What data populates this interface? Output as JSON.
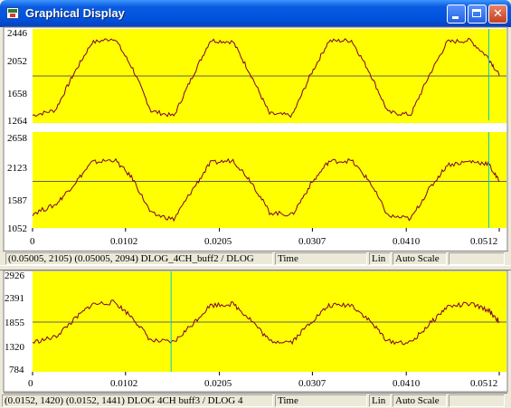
{
  "window": {
    "title": "Graphical Display",
    "minimize_glyph": "_",
    "close_glyph": "✕"
  },
  "colors": {
    "plot_background": "#ffff00",
    "trace": "#7a0030",
    "cursor": "#00c8c8",
    "grid": "#606060"
  },
  "top_panel": {
    "plot1": {
      "y_ticks": [
        "2446",
        "2052",
        "1658",
        "1264"
      ]
    },
    "plot2": {
      "y_ticks": [
        "2658",
        "2123",
        "1587",
        "1052"
      ]
    },
    "x_ticks": [
      "0",
      "0.0102",
      "0.0205",
      "0.0307",
      "0.0410",
      "0.0512"
    ],
    "status": {
      "coords": "(0.05005, 2105) (0.05005, 2094)  DLOG_4CH_buff2 / DLOG",
      "axis": "Time",
      "scale_type": "Lin",
      "scale_mode": "Auto Scale"
    }
  },
  "bottom_panel": {
    "plot1": {
      "y_ticks": [
        "2926",
        "2391",
        "1855",
        "1320",
        "784"
      ]
    },
    "x_ticks": [
      "0",
      "0.0102",
      "0.0205",
      "0.0307",
      "0.0410",
      "0.0512"
    ],
    "status": {
      "coords": "(0.0152, 1420)  (0.0152, 1441)  DLOG  4CH  buff3 / DLOG  4",
      "axis": "Time",
      "scale_type": "Lin",
      "scale_mode": "Auto Scale"
    }
  },
  "chart_data": [
    {
      "type": "line",
      "x_range": [
        0,
        0.0512
      ],
      "x_ticks": [
        "0",
        "0.0102",
        "0.0205",
        "0.0307",
        "0.0410",
        "0.0512"
      ],
      "y_range": [
        1264,
        2446
      ],
      "y_ticks": [
        2446,
        2052,
        1658,
        1264
      ],
      "cursor_x": 0.05005,
      "series": [
        {
          "x": [
            0,
            0.0025,
            0.0045,
            0.0065,
            0.009,
            0.011,
            0.013,
            0.0155,
            0.0175,
            0.0195,
            0.022,
            0.024,
            0.026,
            0.0285,
            0.0305,
            0.0325,
            0.035,
            0.037,
            0.039,
            0.0415,
            0.0435,
            0.0455,
            0.048,
            0.05,
            0.0512
          ],
          "y": [
            1330,
            1400,
            1880,
            2300,
            2360,
            1950,
            1390,
            1320,
            1840,
            2330,
            2310,
            1860,
            1350,
            1330,
            1870,
            2320,
            2330,
            1900,
            1370,
            1340,
            1860,
            2310,
            2330,
            2100,
            1860
          ]
        }
      ]
    },
    {
      "type": "line",
      "x_range": [
        0,
        0.0512
      ],
      "x_ticks": [
        "0",
        "0.0102",
        "0.0205",
        "0.0307",
        "0.0410",
        "0.0512"
      ],
      "y_range": [
        1052,
        2658
      ],
      "y_ticks": [
        2658,
        2123,
        1587,
        1052
      ],
      "cursor_x": 0.05005,
      "series": [
        {
          "x": [
            0,
            0.0025,
            0.0045,
            0.0065,
            0.009,
            0.011,
            0.013,
            0.0155,
            0.0175,
            0.0195,
            0.022,
            0.024,
            0.026,
            0.0285,
            0.0305,
            0.0325,
            0.035,
            0.037,
            0.039,
            0.0415,
            0.0435,
            0.0455,
            0.048,
            0.05,
            0.0512
          ],
          "y": [
            1300,
            1450,
            1800,
            2180,
            2230,
            1900,
            1300,
            1200,
            1700,
            2170,
            2220,
            1850,
            1320,
            1280,
            1800,
            2200,
            2210,
            1850,
            1260,
            1210,
            1720,
            2140,
            2200,
            2160,
            1850
          ]
        }
      ]
    },
    {
      "type": "line",
      "x_range": [
        0,
        0.0512
      ],
      "x_ticks": [
        "0",
        "0.0102",
        "0.0205",
        "0.0307",
        "0.0410",
        "0.0512"
      ],
      "y_range": [
        784,
        2926
      ],
      "y_ticks": [
        2926,
        2391,
        1855,
        1320,
        784
      ],
      "cursor_x": 0.0152,
      "series": [
        {
          "x": [
            0,
            0.0025,
            0.0045,
            0.0065,
            0.009,
            0.011,
            0.013,
            0.0155,
            0.0175,
            0.0195,
            0.022,
            0.024,
            0.026,
            0.0285,
            0.0305,
            0.0325,
            0.035,
            0.037,
            0.039,
            0.0415,
            0.0435,
            0.0455,
            0.048,
            0.05,
            0.0512
          ],
          "y": [
            1400,
            1520,
            1900,
            2250,
            2300,
            1950,
            1440,
            1400,
            1800,
            2230,
            2260,
            1900,
            1430,
            1420,
            1850,
            2220,
            2240,
            1880,
            1420,
            1390,
            1800,
            2200,
            2260,
            2120,
            1870
          ]
        }
      ]
    }
  ]
}
